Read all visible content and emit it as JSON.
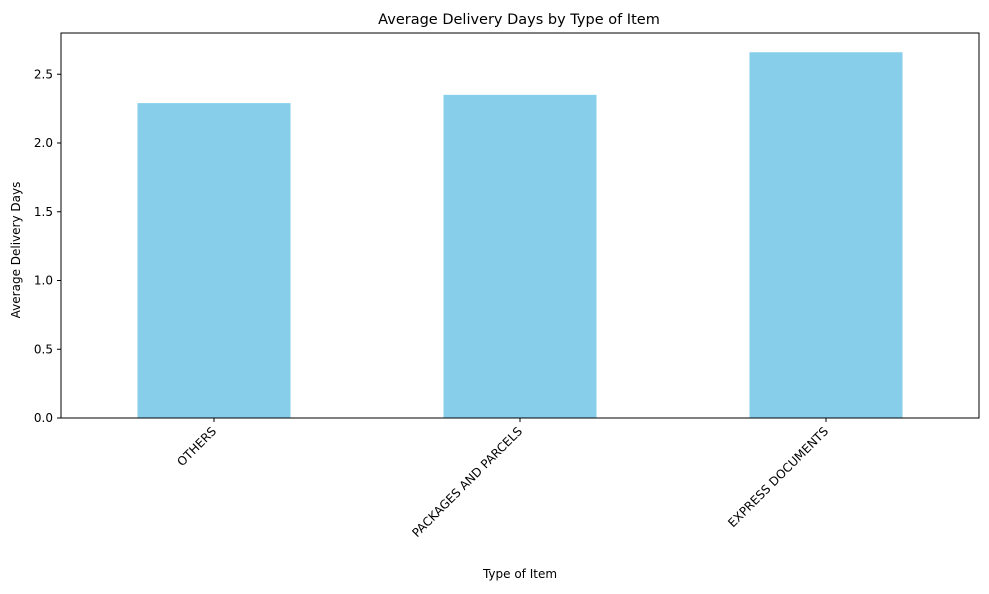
{
  "chart_data": {
    "type": "bar",
    "title": "Average Delivery Days by Type of Item",
    "xlabel": "Type of Item",
    "ylabel": "Average Delivery Days",
    "categories": [
      "OTHERS",
      "PACKAGES AND PARCELS",
      "EXPRESS DOCUMENTS"
    ],
    "values": [
      2.29,
      2.35,
      2.66
    ],
    "ylim": [
      0,
      2.8
    ],
    "yticks": [
      "0.0",
      "0.5",
      "1.0",
      "1.5",
      "2.0",
      "2.5"
    ],
    "grid": false,
    "legend": "none",
    "bar_color": "#87CEEB"
  }
}
